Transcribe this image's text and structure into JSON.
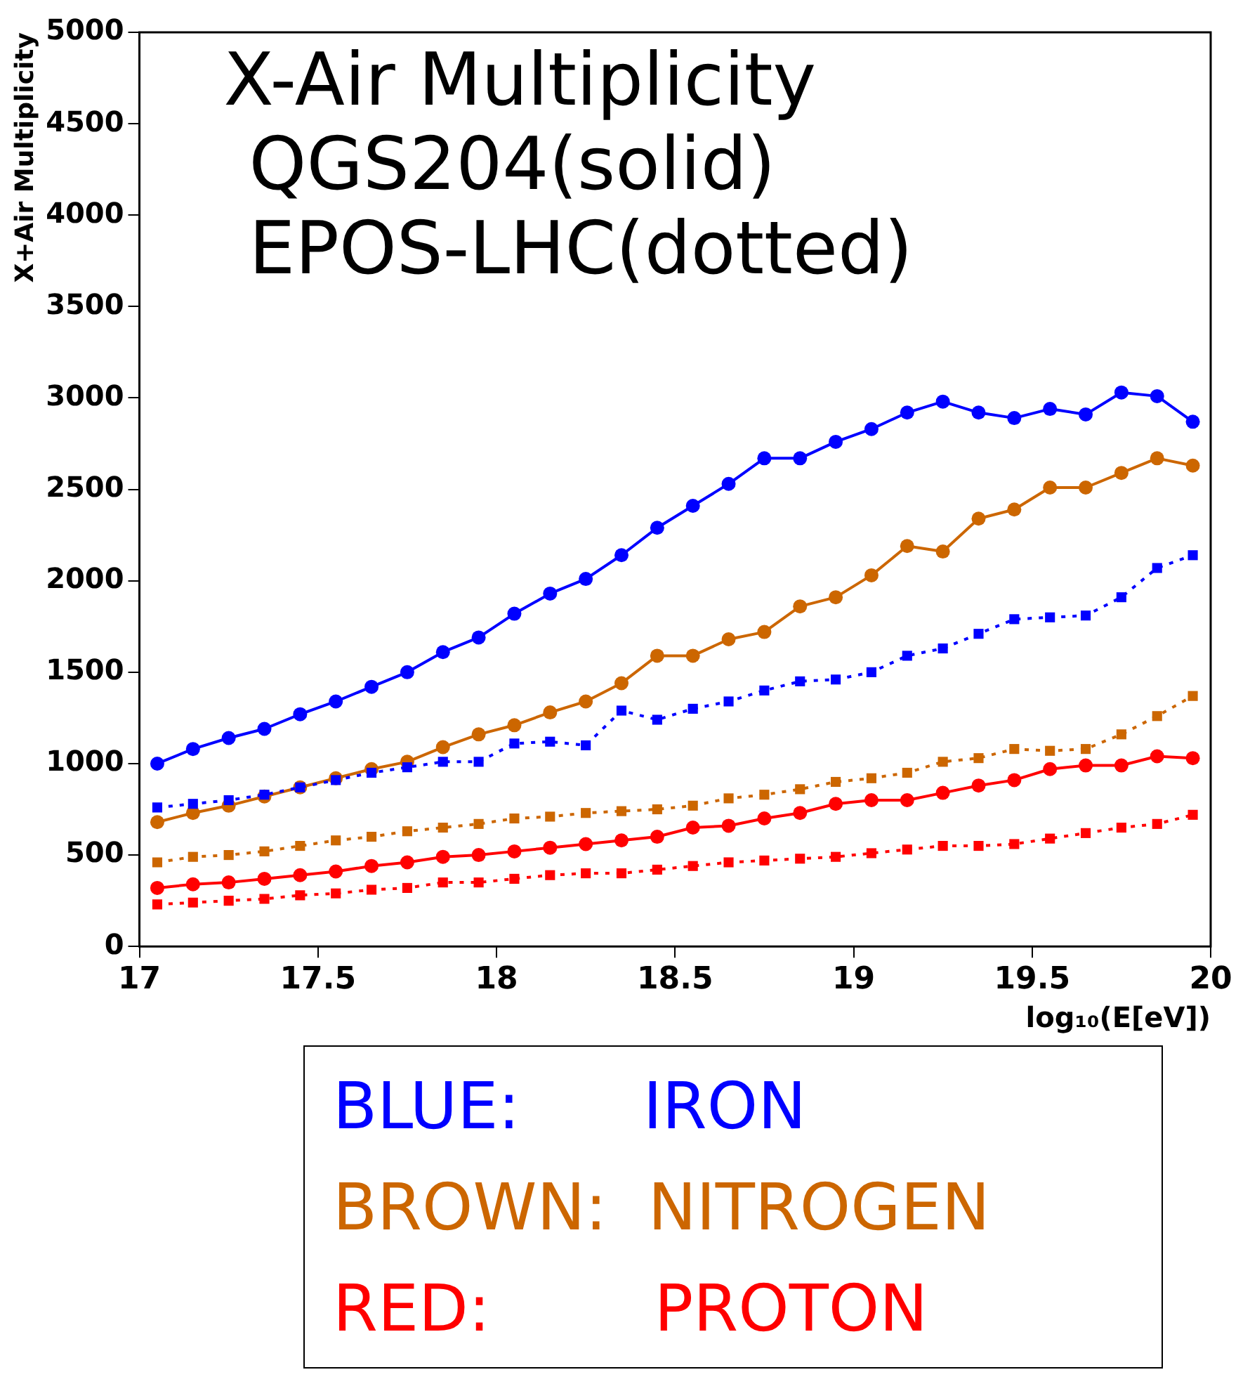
{
  "chart_data": {
    "type": "line",
    "title": "X-Air Multiplicity",
    "xlabel": "log₁₀(E[eV])",
    "ylabel": "X+Air Multiplicity",
    "annotations": [
      "QGS204(solid)",
      "EPOS-LHC(dotted)",
      "BLUE:      IRON",
      "BROWN:  NITROGEN",
      "RED:        PROTON"
    ],
    "x": [
      17.05,
      17.15,
      17.25,
      17.35,
      17.45,
      17.55,
      17.65,
      17.75,
      17.85,
      17.95,
      18.05,
      18.15,
      18.25,
      18.35,
      18.45,
      18.55,
      18.65,
      18.75,
      18.85,
      18.95,
      19.05,
      19.15,
      19.25,
      19.35,
      19.45,
      19.55,
      19.65,
      19.75,
      19.85,
      19.95
    ],
    "series": [
      {
        "color": "#0000ff",
        "marker": "circle",
        "line_style": "solid",
        "values": [
          1000,
          1080,
          1140,
          1190,
          1270,
          1340,
          1420,
          1500,
          1610,
          1690,
          1820,
          1930,
          2010,
          2140,
          2290,
          2410,
          2530,
          2670,
          2670,
          2760,
          2830,
          2920,
          2980,
          2920,
          2890,
          2940,
          2910,
          3030,
          3010,
          2870
        ]
      },
      {
        "color": "#0000ff",
        "marker": "square",
        "line_style": "dotted",
        "values": [
          760,
          780,
          800,
          830,
          870,
          910,
          950,
          980,
          1010,
          1010,
          1110,
          1120,
          1100,
          1290,
          1240,
          1300,
          1340,
          1400,
          1450,
          1460,
          1500,
          1590,
          1630,
          1710,
          1790,
          1800,
          1810,
          1910,
          2070,
          2140
        ]
      },
      {
        "color": "#cc6600",
        "marker": "circle",
        "line_style": "solid",
        "values": [
          680,
          730,
          770,
          820,
          870,
          920,
          970,
          1010,
          1090,
          1160,
          1210,
          1280,
          1340,
          1440,
          1590,
          1590,
          1680,
          1720,
          1860,
          1910,
          2030,
          2190,
          2160,
          2340,
          2390,
          2510,
          2510,
          2590,
          2670,
          2630
        ]
      },
      {
        "color": "#cc6600",
        "marker": "square",
        "line_style": "dotted",
        "values": [
          460,
          490,
          500,
          520,
          550,
          580,
          600,
          630,
          650,
          670,
          700,
          710,
          730,
          740,
          750,
          770,
          810,
          830,
          860,
          900,
          920,
          950,
          1010,
          1030,
          1080,
          1070,
          1080,
          1160,
          1260,
          1370
        ]
      },
      {
        "color": "#ff0000",
        "marker": "circle",
        "line_style": "solid",
        "values": [
          320,
          340,
          350,
          370,
          390,
          410,
          440,
          460,
          490,
          500,
          520,
          540,
          560,
          580,
          600,
          650,
          660,
          700,
          730,
          780,
          800,
          800,
          840,
          880,
          910,
          970,
          990,
          990,
          1040,
          1030
        ]
      },
      {
        "color": "#ff0000",
        "marker": "square",
        "line_style": "dotted",
        "values": [
          230,
          240,
          250,
          260,
          280,
          290,
          310,
          320,
          350,
          350,
          370,
          390,
          400,
          400,
          420,
          440,
          460,
          470,
          480,
          490,
          510,
          530,
          550,
          550,
          560,
          590,
          620,
          650,
          670,
          720
        ]
      }
    ],
    "xlim": [
      17,
      20
    ],
    "xticks": [
      17,
      17.5,
      18,
      18.5,
      19,
      19.5,
      20
    ],
    "ylim": [
      0,
      5000
    ],
    "yticks": [
      0,
      500,
      1000,
      1500,
      2000,
      2500,
      3000,
      3500,
      4000,
      4500,
      5000
    ],
    "grid": false,
    "legend": false
  }
}
